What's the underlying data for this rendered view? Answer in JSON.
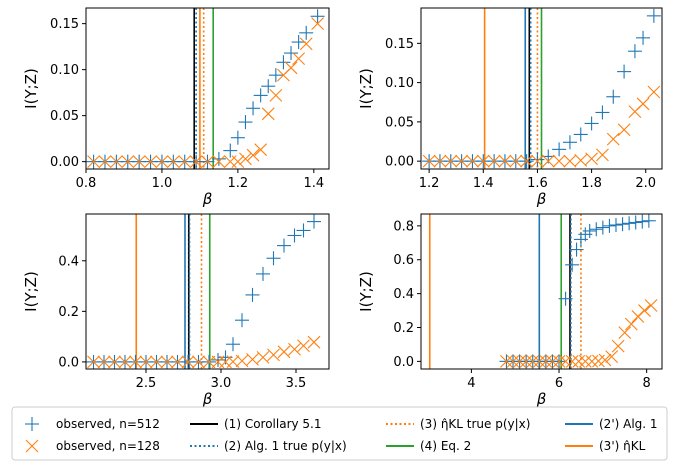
{
  "colors": {
    "observed_512": "#1f77b4",
    "observed_128": "#ff7f0e",
    "corollary": "#000000",
    "alg1_true": "#1f77b4",
    "eta_true": "#ff7f0e",
    "eq2": "#2ca02c",
    "alg1": "#1f77b4",
    "eta_kl": "#ff7f0e"
  },
  "legend": {
    "items": [
      {
        "key": "observed_512",
        "label": "observed, n=512",
        "style": "plus"
      },
      {
        "key": "observed_128",
        "label": "observed, n=128",
        "style": "cross"
      },
      {
        "key": "corollary",
        "label": "(1) Corollary 5.1",
        "style": "solid"
      },
      {
        "key": "alg1_true",
        "label": "(2) Alg. 1 true p(y|x)",
        "style": "dotted"
      },
      {
        "key": "eta_true",
        "label": "(3) η̂KL true p(y|x)",
        "style": "dotted"
      },
      {
        "key": "eq2",
        "label": "(4) Eq. 2",
        "style": "solid"
      },
      {
        "key": "alg1",
        "label": "(2') Alg. 1",
        "style": "solid"
      },
      {
        "key": "eta_kl",
        "label": "(3') η̂KL",
        "style": "solid"
      }
    ]
  },
  "chart_data": [
    {
      "type": "scatter",
      "xlabel": "β",
      "ylabel": "I(Y;Z)",
      "xlim": [
        0.8,
        1.44
      ],
      "ylim": [
        -0.008,
        0.167
      ],
      "xticks": [
        0.8,
        1.0,
        1.2,
        1.4
      ],
      "xtick_labels": [
        "0.8",
        "1.0",
        "1.2",
        "1.4"
      ],
      "yticks": [
        0.0,
        0.05,
        0.1,
        0.15
      ],
      "ytick_labels": [
        "0.00",
        "0.05",
        "0.10",
        "0.15"
      ],
      "series": [
        {
          "key": "observed_512",
          "marker": "plus",
          "x": [
            0.82,
            0.85,
            0.88,
            0.91,
            0.94,
            0.97,
            1.0,
            1.03,
            1.06,
            1.09,
            1.12,
            1.15,
            1.18,
            1.2,
            1.22,
            1.24,
            1.26,
            1.28,
            1.3,
            1.32,
            1.34,
            1.36,
            1.38,
            1.41
          ],
          "y": [
            0,
            0,
            0,
            0,
            0,
            0,
            0,
            0,
            0,
            0,
            0,
            0.003,
            0.012,
            0.026,
            0.043,
            0.058,
            0.072,
            0.082,
            0.094,
            0.108,
            0.118,
            0.13,
            0.14,
            0.158
          ]
        },
        {
          "key": "observed_128",
          "marker": "cross",
          "x": [
            0.82,
            0.85,
            0.88,
            0.91,
            0.94,
            0.97,
            1.0,
            1.03,
            1.06,
            1.09,
            1.12,
            1.15,
            1.18,
            1.2,
            1.22,
            1.24,
            1.26,
            1.28,
            1.3,
            1.32,
            1.34,
            1.36,
            1.38,
            1.41
          ],
          "y": [
            0,
            0,
            0,
            0,
            0,
            0,
            0,
            0,
            0,
            0,
            0,
            0,
            0,
            0,
            0.003,
            0.007,
            0.013,
            0.052,
            0.072,
            0.094,
            0.102,
            0.112,
            0.128,
            0.15
          ]
        }
      ],
      "vlines": [
        {
          "key": "corollary",
          "x": 1.085,
          "style": "solid"
        },
        {
          "key": "alg1_true",
          "x": 1.09,
          "style": "dotted"
        },
        {
          "key": "eta_true",
          "x": 1.11,
          "style": "dotted"
        },
        {
          "key": "eq2",
          "x": 1.135,
          "style": "solid"
        },
        {
          "key": "eta_kl",
          "x": 1.1,
          "style": "solid"
        }
      ]
    },
    {
      "type": "scatter",
      "xlabel": "β",
      "ylabel": "I(Y;Z)",
      "xlim": [
        1.17,
        2.06
      ],
      "ylim": [
        -0.01,
        0.195
      ],
      "xticks": [
        1.2,
        1.4,
        1.6,
        1.8,
        2.0
      ],
      "xtick_labels": [
        "1.2",
        "1.4",
        "1.6",
        "1.8",
        "2.0"
      ],
      "yticks": [
        0.0,
        0.05,
        0.1,
        0.15
      ],
      "ytick_labels": [
        "0.00",
        "0.05",
        "0.10",
        "0.15"
      ],
      "series": [
        {
          "key": "observed_512",
          "marker": "plus",
          "x": [
            1.2,
            1.24,
            1.28,
            1.32,
            1.36,
            1.4,
            1.44,
            1.48,
            1.52,
            1.56,
            1.6,
            1.64,
            1.68,
            1.72,
            1.76,
            1.8,
            1.84,
            1.88,
            1.92,
            1.96,
            1.99,
            2.03
          ],
          "y": [
            0,
            0,
            0,
            0,
            0,
            0,
            0,
            0,
            0,
            0,
            0.002,
            0.006,
            0.015,
            0.024,
            0.034,
            0.048,
            0.062,
            0.082,
            0.114,
            0.14,
            0.157,
            0.185
          ]
        },
        {
          "key": "observed_128",
          "marker": "cross",
          "x": [
            1.2,
            1.24,
            1.28,
            1.32,
            1.36,
            1.4,
            1.44,
            1.48,
            1.52,
            1.56,
            1.6,
            1.64,
            1.68,
            1.72,
            1.76,
            1.8,
            1.84,
            1.88,
            1.92,
            1.96,
            1.99,
            2.03
          ],
          "y": [
            0,
            0,
            0,
            0,
            0,
            0,
            0,
            0,
            0,
            0,
            0,
            0,
            0,
            0,
            0.001,
            0.003,
            0.008,
            0.028,
            0.04,
            0.063,
            0.073,
            0.088
          ]
        }
      ],
      "vlines": [
        {
          "key": "eta_kl",
          "x": 1.405,
          "style": "solid"
        },
        {
          "key": "alg1",
          "x": 1.555,
          "style": "solid"
        },
        {
          "key": "corollary",
          "x": 1.57,
          "style": "solid"
        },
        {
          "key": "alg1_true",
          "x": 1.575,
          "style": "dotted"
        },
        {
          "key": "eta_true",
          "x": 1.6,
          "style": "dotted"
        },
        {
          "key": "eq2",
          "x": 1.615,
          "style": "solid"
        }
      ]
    },
    {
      "type": "scatter",
      "xlabel": "β",
      "ylabel": "I(Y;Z)",
      "xlim": [
        2.1,
        3.72
      ],
      "ylim": [
        -0.028,
        0.585
      ],
      "xticks": [
        2.5,
        3.0,
        3.5
      ],
      "xtick_labels": [
        "2.5",
        "3.0",
        "3.5"
      ],
      "yticks": [
        0.0,
        0.2,
        0.4
      ],
      "ytick_labels": [
        "0.0",
        "0.2",
        "0.4"
      ],
      "series": [
        {
          "key": "observed_512",
          "marker": "plus",
          "x": [
            2.15,
            2.22,
            2.29,
            2.36,
            2.43,
            2.5,
            2.57,
            2.64,
            2.71,
            2.78,
            2.85,
            2.92,
            2.98,
            3.03,
            3.08,
            3.14,
            3.21,
            3.28,
            3.35,
            3.42,
            3.49,
            3.55,
            3.62
          ],
          "y": [
            0,
            0,
            0,
            0,
            0,
            0,
            0,
            0,
            0,
            0,
            0,
            0,
            0.008,
            0.018,
            0.07,
            0.165,
            0.265,
            0.348,
            0.41,
            0.46,
            0.5,
            0.52,
            0.555
          ]
        },
        {
          "key": "observed_128",
          "marker": "cross",
          "x": [
            2.15,
            2.22,
            2.29,
            2.36,
            2.43,
            2.5,
            2.57,
            2.64,
            2.71,
            2.78,
            2.85,
            2.92,
            2.98,
            3.03,
            3.08,
            3.14,
            3.21,
            3.28,
            3.35,
            3.42,
            3.49,
            3.55,
            3.62
          ],
          "y": [
            0,
            0,
            0,
            0,
            0,
            0,
            0,
            0,
            0,
            0,
            0,
            0,
            0,
            0,
            0.001,
            0.004,
            0.01,
            0.018,
            0.028,
            0.04,
            0.05,
            0.064,
            0.078
          ]
        }
      ],
      "vlines": [
        {
          "key": "eta_kl",
          "x": 2.435,
          "style": "solid"
        },
        {
          "key": "alg1",
          "x": 2.76,
          "style": "solid"
        },
        {
          "key": "corollary",
          "x": 2.785,
          "style": "solid"
        },
        {
          "key": "alg1_true",
          "x": 2.79,
          "style": "dotted"
        },
        {
          "key": "eta_true",
          "x": 2.87,
          "style": "dotted"
        },
        {
          "key": "eq2",
          "x": 2.925,
          "style": "solid"
        }
      ]
    },
    {
      "type": "scatter",
      "xlabel": "β",
      "ylabel": "I(Y;Z)",
      "xlim": [
        2.85,
        8.35
      ],
      "ylim": [
        -0.045,
        0.87
      ],
      "xticks": [
        4,
        6,
        8
      ],
      "xtick_labels": [
        "4",
        "6",
        "8"
      ],
      "yticks": [
        0.0,
        0.2,
        0.4,
        0.6,
        0.8
      ],
      "ytick_labels": [
        "0.0",
        "0.2",
        "0.4",
        "0.6",
        "0.8"
      ],
      "series": [
        {
          "key": "observed_512",
          "marker": "plus",
          "x": [
            4.8,
            4.95,
            5.1,
            5.25,
            5.4,
            5.55,
            5.7,
            5.85,
            6.0,
            6.15,
            6.3,
            6.4,
            6.5,
            6.6,
            6.7,
            6.85,
            7.0,
            7.15,
            7.3,
            7.45,
            7.6,
            7.75,
            7.9,
            8.05
          ],
          "y": [
            0,
            0,
            0,
            0,
            0,
            0,
            0,
            0,
            0,
            0.37,
            0.57,
            0.66,
            0.72,
            0.75,
            0.77,
            0.78,
            0.79,
            0.8,
            0.805,
            0.81,
            0.815,
            0.82,
            0.825,
            0.83
          ]
        },
        {
          "key": "observed_128",
          "marker": "cross",
          "x": [
            4.8,
            4.95,
            5.1,
            5.25,
            5.4,
            5.55,
            5.7,
            5.85,
            6.0,
            6.15,
            6.3,
            6.45,
            6.6,
            6.75,
            6.9,
            7.05,
            7.2,
            7.35,
            7.5,
            7.65,
            7.8,
            7.95,
            8.1
          ],
          "y": [
            0,
            0,
            0,
            0,
            0,
            0,
            0,
            0,
            0,
            0,
            0,
            0,
            0,
            0,
            0.002,
            0.008,
            0.028,
            0.09,
            0.17,
            0.22,
            0.265,
            0.3,
            0.33
          ]
        }
      ],
      "vlines": [
        {
          "key": "eta_kl",
          "x": 3.05,
          "style": "solid"
        },
        {
          "key": "alg1",
          "x": 5.55,
          "style": "solid"
        },
        {
          "key": "eq2",
          "x": 6.05,
          "style": "solid"
        },
        {
          "key": "corollary",
          "x": 6.25,
          "style": "solid"
        },
        {
          "key": "alg1_true",
          "x": 6.27,
          "style": "dotted"
        },
        {
          "key": "eta_true",
          "x": 6.5,
          "style": "dotted"
        }
      ]
    }
  ]
}
